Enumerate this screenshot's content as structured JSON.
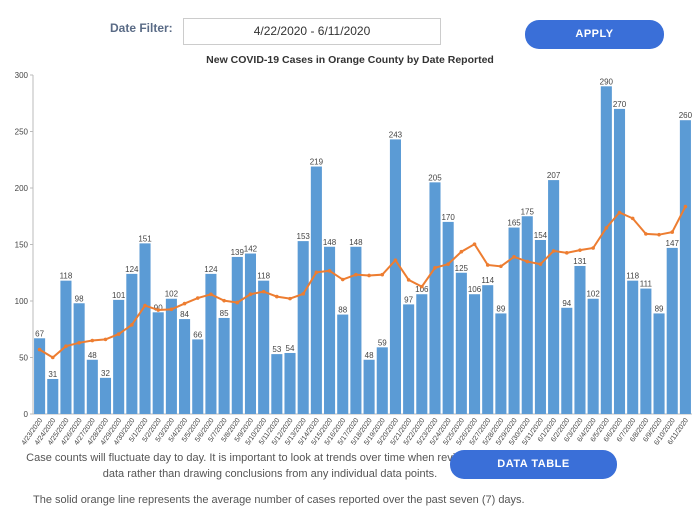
{
  "filter": {
    "label": "Date Filter:",
    "value": "4/22/2020 - 6/11/2020",
    "button": "APPLY"
  },
  "chart_data": {
    "type": "bar",
    "title": "New COVID-19 Cases in Orange County by Date Reported",
    "categories": [
      "4/23/2020",
      "4/24/2020",
      "4/25/2020",
      "4/26/2020",
      "4/27/2020",
      "4/28/2020",
      "4/29/2020",
      "4/30/2020",
      "5/1/2020",
      "5/2/2020",
      "5/3/2020",
      "5/4/2020",
      "5/5/2020",
      "5/6/2020",
      "5/7/2020",
      "5/8/2020",
      "5/9/2020",
      "5/10/2020",
      "5/11/2020",
      "5/12/2020",
      "5/13/2020",
      "5/14/2020",
      "5/15/2020",
      "5/16/2020",
      "5/17/2020",
      "5/18/2020",
      "5/19/2020",
      "5/20/2020",
      "5/21/2020",
      "5/22/2020",
      "5/23/2020",
      "5/24/2020",
      "5/25/2020",
      "5/26/2020",
      "5/27/2020",
      "5/28/2020",
      "5/29/2020",
      "5/30/2020",
      "5/31/2020",
      "6/1/2020",
      "6/2/2020",
      "6/3/2020",
      "6/4/2020",
      "6/5/2020",
      "6/6/2020",
      "6/7/2020",
      "6/8/2020",
      "6/9/2020",
      "6/10/2020",
      "6/11/2020"
    ],
    "values": [
      67,
      31,
      118,
      98,
      48,
      32,
      101,
      124,
      151,
      90,
      102,
      84,
      66,
      124,
      85,
      139,
      142,
      118,
      53,
      54,
      153,
      219,
      148,
      88,
      148,
      48,
      59,
      243,
      97,
      106,
      205,
      170,
      125,
      106,
      114,
      89,
      165,
      175,
      154,
      207,
      94,
      131,
      102,
      290,
      270,
      118,
      111,
      89,
      147,
      260
    ],
    "color": "#5b9bd5",
    "average": {
      "color": "#ed7d31",
      "values": [
        57,
        50,
        60,
        63,
        65,
        66,
        70.7,
        78.9,
        96,
        92,
        92.6,
        97.7,
        102.6,
        105.9,
        100.3,
        98.6,
        106,
        108.3,
        103.9,
        102.1,
        106.3,
        125.4,
        126.7,
        119,
        123.3,
        122.6,
        123.3,
        136.1,
        118.7,
        112.7,
        129.4,
        132.6,
        143.6,
        150.3,
        131.9,
        130.7,
        139.1,
        134.9,
        132.6,
        144.3,
        142.6,
        145,
        146.9,
        164.7,
        178.3,
        173.1,
        159.4,
        158.7,
        161,
        183.6
      ]
    },
    "ylim": [
      0,
      300
    ],
    "yticks": [
      0,
      50,
      100,
      150,
      200,
      250,
      300
    ],
    "grid": false
  },
  "footer": {
    "note_lines": [
      "Case counts will fluctuate day to day. It is important to look at trends over time when reviewing these",
      "data rather than drawing conclusions from any individual data points."
    ],
    "button": "DATA TABLE",
    "line_note": "The solid orange line represents the average number of cases reported over the past seven (7) days."
  }
}
